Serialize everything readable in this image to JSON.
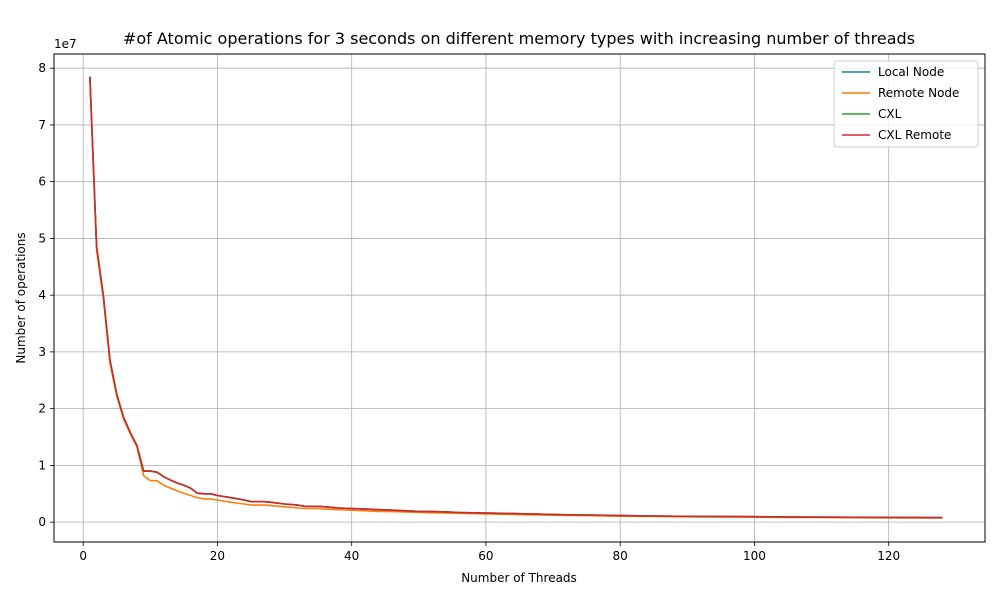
{
  "chart_data": {
    "type": "line",
    "title": "#of Atomic operations for 3 seconds on different memory types with increasing number of threads",
    "xlabel": "Number of Threads",
    "ylabel": "Number of operations",
    "y_offset_label": "1e7",
    "y_scale_factor": 10000000,
    "xlim": [
      -4.35,
      134.35
    ],
    "ylim": [
      -3500000,
      82500000
    ],
    "xticks": [
      0,
      20,
      40,
      60,
      80,
      100,
      120
    ],
    "yticks": [
      0,
      10000000,
      20000000,
      30000000,
      40000000,
      50000000,
      60000000,
      70000000,
      80000000
    ],
    "ytick_labels": [
      "0",
      "1",
      "2",
      "3",
      "4",
      "5",
      "6",
      "7",
      "8"
    ],
    "grid": true,
    "legend_position": "top-right",
    "x": [
      1,
      2,
      3,
      4,
      5,
      6,
      7,
      8,
      9,
      10,
      11,
      12,
      13,
      14,
      15,
      16,
      17,
      18,
      19,
      20,
      22,
      24,
      25,
      26,
      27,
      28,
      30,
      32,
      33,
      34,
      35,
      36,
      38,
      40,
      42,
      44,
      46,
      48,
      50,
      52,
      54,
      56,
      58,
      60,
      62,
      64,
      66,
      68,
      70,
      72,
      75,
      80,
      85,
      90,
      95,
      100,
      105,
      110,
      115,
      120,
      125,
      128
    ],
    "series": [
      {
        "name": "Local Node",
        "color": "#1f77b4",
        "values": [
          78500000,
          48500000,
          40000000,
          28500000,
          22500000,
          18500000,
          15800000,
          13500000,
          9000000,
          9000000,
          8800000,
          8000000,
          7400000,
          6900000,
          6500000,
          6000000,
          5100000,
          5000000,
          5000000,
          4700000,
          4300000,
          3900000,
          3600000,
          3600000,
          3600000,
          3500000,
          3200000,
          3000000,
          2800000,
          2800000,
          2800000,
          2700000,
          2500000,
          2400000,
          2300000,
          2200000,
          2100000,
          2000000,
          1900000,
          1850000,
          1800000,
          1700000,
          1650000,
          1600000,
          1550000,
          1500000,
          1450000,
          1400000,
          1350000,
          1300000,
          1250000,
          1150000,
          1080000,
          1020000,
          980000,
          950000,
          900000,
          870000,
          850000,
          830000,
          800000,
          790000
        ]
      },
      {
        "name": "Remote Node",
        "color": "#ff7f0e",
        "values": [
          78000000,
          48000000,
          39500000,
          28000000,
          22200000,
          18200000,
          15600000,
          13300000,
          8200000,
          7300000,
          7300000,
          6500000,
          6000000,
          5500000,
          5100000,
          4700000,
          4300000,
          4100000,
          4100000,
          3900000,
          3500000,
          3200000,
          3000000,
          3000000,
          3000000,
          2900000,
          2700000,
          2500000,
          2400000,
          2400000,
          2400000,
          2300000,
          2200000,
          2100000,
          2000000,
          1900000,
          1850000,
          1800000,
          1700000,
          1650000,
          1600000,
          1550000,
          1500000,
          1450000,
          1400000,
          1350000,
          1300000,
          1270000,
          1230000,
          1200000,
          1150000,
          1050000,
          1000000,
          950000,
          920000,
          880000,
          840000,
          810000,
          790000,
          770000,
          750000,
          740000
        ]
      },
      {
        "name": "CXL",
        "color": "#2ca02c",
        "values": [
          78500000,
          48500000,
          40000000,
          28500000,
          22500000,
          18500000,
          15800000,
          13500000,
          9000000,
          9000000,
          8800000,
          8000000,
          7400000,
          6900000,
          6500000,
          6000000,
          5100000,
          5000000,
          5000000,
          4700000,
          4300000,
          3900000,
          3600000,
          3600000,
          3600000,
          3500000,
          3200000,
          3000000,
          2800000,
          2800000,
          2800000,
          2700000,
          2500000,
          2400000,
          2300000,
          2200000,
          2100000,
          2000000,
          1900000,
          1850000,
          1800000,
          1700000,
          1650000,
          1600000,
          1550000,
          1500000,
          1450000,
          1400000,
          1350000,
          1300000,
          1250000,
          1150000,
          1080000,
          1020000,
          980000,
          950000,
          900000,
          870000,
          850000,
          830000,
          800000,
          790000
        ]
      },
      {
        "name": "CXL Remote",
        "color": "#d62728",
        "values": [
          78500000,
          48500000,
          40000000,
          28500000,
          22500000,
          18500000,
          15800000,
          13500000,
          9000000,
          9000000,
          8800000,
          8000000,
          7400000,
          6900000,
          6500000,
          6000000,
          5100000,
          5000000,
          5000000,
          4700000,
          4300000,
          3900000,
          3600000,
          3600000,
          3600000,
          3500000,
          3200000,
          3000000,
          2800000,
          2800000,
          2800000,
          2700000,
          2500000,
          2400000,
          2300000,
          2200000,
          2100000,
          2000000,
          1900000,
          1850000,
          1800000,
          1700000,
          1650000,
          1600000,
          1550000,
          1500000,
          1450000,
          1400000,
          1350000,
          1300000,
          1250000,
          1150000,
          1080000,
          1020000,
          980000,
          950000,
          900000,
          870000,
          850000,
          830000,
          800000,
          790000
        ]
      }
    ]
  }
}
